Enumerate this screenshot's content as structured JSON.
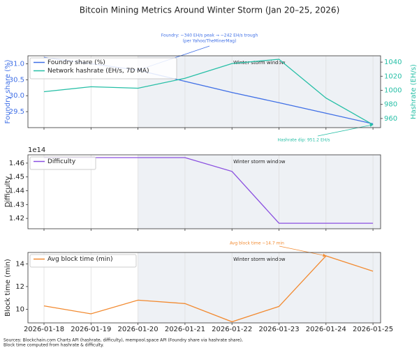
{
  "title": "Bitcoin Mining Metrics Around Winter Storm (Jan 20–25, 2026)",
  "footnote": [
    "Sources: Blockchain.com Charts API (hashrate, difficulty), mempool.space API (Foundry share via hashrate share),",
    "Block time computed from hashrate & difficulty."
  ],
  "chart_data": [
    {
      "type": "line",
      "ylabel": "Foundry share (%)",
      "y2label": "Hashrate (EH/s)",
      "ylim": [
        29.0,
        31.25
      ],
      "yticks": [
        29.5,
        {
          "value": 30,
          "label": "30.0"
        },
        30.5,
        {
          "value": 31,
          "label": "31.0"
        }
      ],
      "y2lim": [
        947,
        1049
      ],
      "y2ticks": [
        960,
        980,
        1000,
        1020,
        1040
      ],
      "grid": true,
      "legend": "upper left",
      "shade_start": "2026-01-20",
      "shade_label": "Winter storm window",
      "series": [
        {
          "name": "Foundry share (%)",
          "color": "#3f6fe6",
          "values": [
            31.2,
            31.0,
            30.8,
            30.45,
            30.1,
            29.78,
            29.45,
            29.12
          ],
          "annotation": {
            "x": "2026-01-20",
            "text": [
              "Foundry: ~340 EH/s peak → ~242 EH/s trough",
              "(per Yahoo/TheMinerMag)"
            ]
          }
        },
        {
          "name": "Network hashrate (EH/s, 7D MA)",
          "color": "#26bfa6",
          "axis": "y2",
          "values": [
            998,
            1005,
            1003,
            1017,
            1038,
            1044,
            989,
            951.2
          ],
          "annotation": {
            "x": "2026-01-25",
            "text": [
              "Hashrate dip: 951.2 EH/s"
            ]
          }
        }
      ]
    },
    {
      "type": "line",
      "ylabel": "Difficulty",
      "offset_label": "1e14",
      "ylim": [
        1.4125,
        1.466
      ],
      "yticks": [
        1.42,
        1.43,
        1.44,
        1.45,
        1.46
      ],
      "grid": true,
      "legend": "upper left",
      "shade_start": "2026-01-20",
      "shade_label": "Winter storm window",
      "series": [
        {
          "name": "Difficulty",
          "color": "#8a4fe0",
          "values": [
            1.464,
            1.464,
            1.464,
            1.464,
            1.454,
            1.4165,
            1.4165,
            1.4165
          ]
        }
      ]
    },
    {
      "type": "line",
      "ylabel": "Block time (min)",
      "categories": [
        "2026-01-18",
        "2026-01-19",
        "2026-01-20",
        "2026-01-21",
        "2026-01-22",
        "2026-01-23",
        "2026-01-24",
        "2026-01-25"
      ],
      "ylim": [
        8.8,
        15.0
      ],
      "yticks": [
        10,
        12,
        14
      ],
      "grid": true,
      "legend": "upper left",
      "shade_start": "2026-01-20",
      "shade_label": "Winter storm window",
      "series": [
        {
          "name": "Avg block time (min)",
          "color": "#f28a30",
          "values": [
            10.3,
            9.6,
            10.8,
            10.5,
            8.9,
            10.25,
            14.7,
            13.35
          ],
          "annotation": {
            "x": "2026-01-24",
            "text": [
              "Avg block time ~14.7 min"
            ]
          }
        }
      ]
    }
  ]
}
